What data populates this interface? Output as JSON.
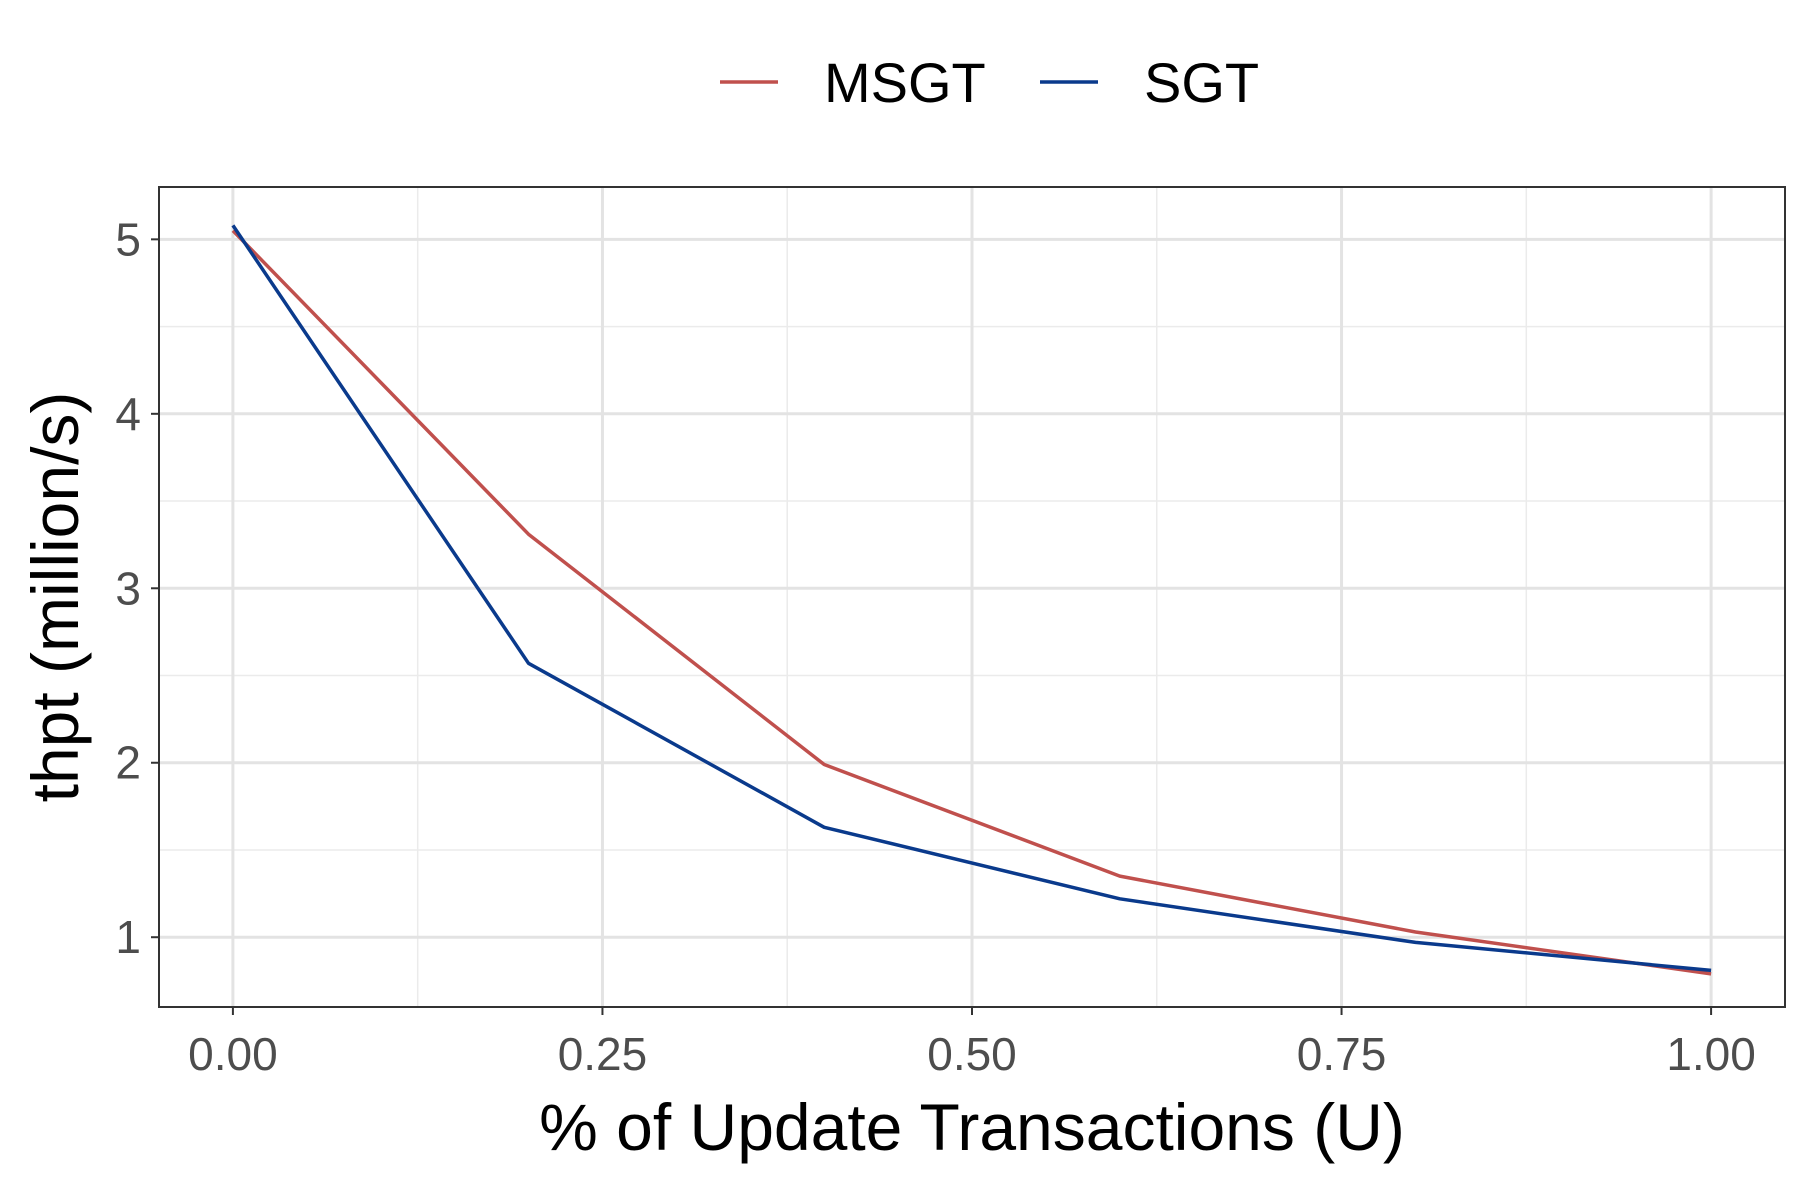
{
  "chart_data": {
    "type": "line",
    "xlabel": "% of Update Transactions (U)",
    "ylabel": "thpt (million/s)",
    "xlim": [
      -0.05,
      1.05
    ],
    "ylim": [
      0.6,
      5.3
    ],
    "x_ticks": [
      0.0,
      0.25,
      0.5,
      0.75,
      1.0
    ],
    "x_tick_labels": [
      "0.00",
      "0.25",
      "0.50",
      "0.75",
      "1.00"
    ],
    "y_ticks": [
      1,
      2,
      3,
      4,
      5
    ],
    "y_tick_labels": [
      "1",
      "2",
      "3",
      "4",
      "5"
    ],
    "grid": true,
    "legend_position": "top",
    "series": [
      {
        "name": "MSGT",
        "color": "#c0504d",
        "x": [
          0.0,
          0.2,
          0.4,
          0.6,
          0.8,
          1.0
        ],
        "y": [
          5.05,
          3.31,
          1.99,
          1.35,
          1.03,
          0.79
        ]
      },
      {
        "name": "SGT",
        "color": "#0a3a8c",
        "x": [
          0.0,
          0.2,
          0.4,
          0.6,
          0.8,
          1.0
        ],
        "y": [
          5.08,
          2.57,
          1.63,
          1.22,
          0.97,
          0.81
        ]
      }
    ]
  }
}
